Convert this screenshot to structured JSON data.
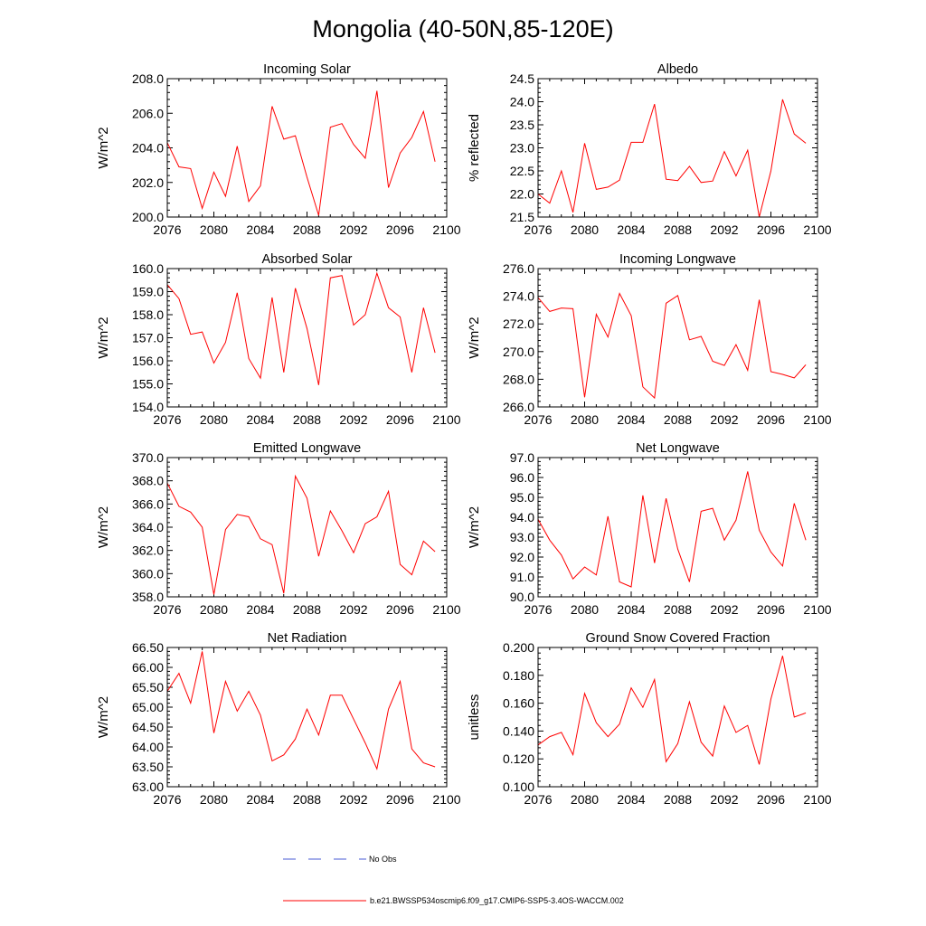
{
  "title": "Mongolia (40-50N,85-120E)",
  "colors": {
    "model": "#ff0000",
    "obs": "#4a5bd6"
  },
  "legend": {
    "obs_label": "No Obs",
    "model_label": "b.e21.BWSSP534oscmip6.f09_g17.CMIP6-SSP5-3.4OS-WACCM.002"
  },
  "chart_data": [
    {
      "type": "line",
      "title": "Incoming Solar",
      "xlabel": "",
      "ylabel": "W/m^2",
      "xlim": [
        2076,
        2100
      ],
      "ylim": [
        200.0,
        208.0
      ],
      "xticks": [
        2076,
        2080,
        2084,
        2088,
        2092,
        2096,
        2100
      ],
      "yticks": [
        200.0,
        202.0,
        204.0,
        206.0,
        208.0
      ],
      "ytick_labels": [
        "200.0",
        "202.0",
        "204.0",
        "206.0",
        "208.0"
      ],
      "x": [
        2076,
        2077,
        2078,
        2079,
        2080,
        2081,
        2082,
        2083,
        2084,
        2085,
        2086,
        2087,
        2088,
        2089,
        2090,
        2091,
        2092,
        2093,
        2094,
        2095,
        2096,
        2097,
        2098,
        2099
      ],
      "series": [
        {
          "name": "b.e21.BWSSP534oscmip6.f09_g17.CMIP6-SSP5-3.4OS-WACCM.002",
          "values": [
            204.3,
            202.9,
            202.8,
            200.5,
            202.6,
            201.2,
            204.1,
            200.9,
            201.8,
            206.4,
            204.5,
            204.7,
            202.3,
            200.1,
            205.2,
            205.4,
            204.2,
            203.4,
            207.3,
            201.7,
            203.7,
            204.6,
            206.1,
            203.2
          ]
        }
      ]
    },
    {
      "type": "line",
      "title": "Albedo",
      "xlabel": "",
      "ylabel": "% reflected",
      "xlim": [
        2076,
        2100
      ],
      "ylim": [
        21.5,
        24.5
      ],
      "xticks": [
        2076,
        2080,
        2084,
        2088,
        2092,
        2096,
        2100
      ],
      "yticks": [
        21.5,
        22.0,
        22.5,
        23.0,
        23.5,
        24.0,
        24.5
      ],
      "ytick_labels": [
        "21.5",
        "22.0",
        "22.5",
        "23.0",
        "23.5",
        "24.0",
        "24.5"
      ],
      "x": [
        2076,
        2077,
        2078,
        2079,
        2080,
        2081,
        2082,
        2083,
        2084,
        2085,
        2086,
        2087,
        2088,
        2089,
        2090,
        2091,
        2092,
        2093,
        2094,
        2095,
        2096,
        2097,
        2098,
        2099
      ],
      "series": [
        {
          "name": "b.e21.BWSSP534oscmip6.f09_g17.CMIP6-SSP5-3.4OS-WACCM.002",
          "values": [
            22.0,
            21.8,
            22.5,
            21.6,
            23.1,
            22.1,
            22.15,
            22.3,
            23.12,
            23.12,
            23.95,
            22.32,
            22.29,
            22.6,
            22.25,
            22.28,
            22.92,
            22.39,
            22.95,
            21.5,
            22.5,
            24.05,
            23.3,
            23.1
          ]
        }
      ]
    },
    {
      "type": "line",
      "title": "Absorbed Solar",
      "xlabel": "",
      "ylabel": "W/m^2",
      "xlim": [
        2076,
        2100
      ],
      "ylim": [
        154.0,
        160.0
      ],
      "xticks": [
        2076,
        2080,
        2084,
        2088,
        2092,
        2096,
        2100
      ],
      "yticks": [
        154.0,
        155.0,
        156.0,
        157.0,
        158.0,
        159.0,
        160.0
      ],
      "ytick_labels": [
        "154.0",
        "155.0",
        "156.0",
        "157.0",
        "158.0",
        "159.0",
        "160.0"
      ],
      "x": [
        2076,
        2077,
        2078,
        2079,
        2080,
        2081,
        2082,
        2083,
        2084,
        2085,
        2086,
        2087,
        2088,
        2089,
        2090,
        2091,
        2092,
        2093,
        2094,
        2095,
        2096,
        2097,
        2098,
        2099
      ],
      "series": [
        {
          "name": "b.e21.BWSSP534oscmip6.f09_g17.CMIP6-SSP5-3.4OS-WACCM.002",
          "values": [
            159.3,
            158.7,
            157.15,
            157.25,
            155.9,
            156.8,
            158.95,
            156.1,
            155.25,
            158.75,
            155.5,
            159.15,
            157.4,
            154.95,
            159.6,
            159.7,
            157.55,
            158.0,
            159.8,
            158.3,
            157.9,
            155.5,
            158.3,
            156.35
          ]
        }
      ]
    },
    {
      "type": "line",
      "title": "Incoming Longwave",
      "xlabel": "",
      "ylabel": "W/m^2",
      "xlim": [
        2076,
        2100
      ],
      "ylim": [
        266.0,
        276.0
      ],
      "xticks": [
        2076,
        2080,
        2084,
        2088,
        2092,
        2096,
        2100
      ],
      "yticks": [
        266.0,
        268.0,
        270.0,
        272.0,
        274.0,
        276.0
      ],
      "ytick_labels": [
        "266.0",
        "268.0",
        "270.0",
        "272.0",
        "274.0",
        "276.0"
      ],
      "x": [
        2076,
        2077,
        2078,
        2079,
        2080,
        2081,
        2082,
        2083,
        2084,
        2085,
        2086,
        2087,
        2088,
        2089,
        2090,
        2091,
        2092,
        2093,
        2094,
        2095,
        2096,
        2097,
        2098,
        2099
      ],
      "series": [
        {
          "name": "b.e21.BWSSP534oscmip6.f09_g17.CMIP6-SSP5-3.4OS-WACCM.002",
          "values": [
            273.9,
            272.9,
            273.15,
            273.1,
            266.7,
            272.7,
            271.05,
            274.2,
            272.6,
            267.45,
            266.65,
            273.5,
            274.05,
            270.85,
            271.1,
            269.3,
            269.0,
            270.5,
            268.65,
            273.75,
            268.55,
            268.35,
            268.1,
            269.05
          ]
        }
      ]
    },
    {
      "type": "line",
      "title": "Emitted Longwave",
      "xlabel": "",
      "ylabel": "W/m^2",
      "xlim": [
        2076,
        2100
      ],
      "ylim": [
        358.0,
        370.0
      ],
      "xticks": [
        2076,
        2080,
        2084,
        2088,
        2092,
        2096,
        2100
      ],
      "yticks": [
        358.0,
        360.0,
        362.0,
        364.0,
        366.0,
        368.0,
        370.0
      ],
      "ytick_labels": [
        "358.0",
        "360.0",
        "362.0",
        "364.0",
        "366.0",
        "368.0",
        "370.0"
      ],
      "x": [
        2076,
        2077,
        2078,
        2079,
        2080,
        2081,
        2082,
        2083,
        2084,
        2085,
        2086,
        2087,
        2088,
        2089,
        2090,
        2091,
        2092,
        2093,
        2094,
        2095,
        2096,
        2097,
        2098,
        2099
      ],
      "series": [
        {
          "name": "b.e21.BWSSP534oscmip6.f09_g17.CMIP6-SSP5-3.4OS-WACCM.002",
          "values": [
            367.8,
            365.8,
            365.3,
            364.0,
            358.2,
            363.8,
            365.1,
            364.9,
            363.0,
            362.5,
            358.3,
            368.4,
            366.5,
            361.5,
            365.4,
            363.7,
            361.8,
            364.3,
            364.9,
            367.1,
            360.8,
            359.9,
            362.8,
            361.9
          ]
        }
      ]
    },
    {
      "type": "line",
      "title": "Net Longwave",
      "xlabel": "",
      "ylabel": "W/m^2",
      "xlim": [
        2076,
        2100
      ],
      "ylim": [
        90.0,
        97.0
      ],
      "xticks": [
        2076,
        2080,
        2084,
        2088,
        2092,
        2096,
        2100
      ],
      "yticks": [
        90.0,
        91.0,
        92.0,
        93.0,
        94.0,
        95.0,
        96.0,
        97.0
      ],
      "ytick_labels": [
        "90.0",
        "91.0",
        "92.0",
        "93.0",
        "94.0",
        "95.0",
        "96.0",
        "97.0"
      ],
      "x": [
        2076,
        2077,
        2078,
        2079,
        2080,
        2081,
        2082,
        2083,
        2084,
        2085,
        2086,
        2087,
        2088,
        2089,
        2090,
        2091,
        2092,
        2093,
        2094,
        2095,
        2096,
        2097,
        2098,
        2099
      ],
      "series": [
        {
          "name": "b.e21.BWSSP534oscmip6.f09_g17.CMIP6-SSP5-3.4OS-WACCM.002",
          "values": [
            93.9,
            92.85,
            92.1,
            90.9,
            91.5,
            91.1,
            94.05,
            90.75,
            90.5,
            95.1,
            91.7,
            94.95,
            92.4,
            90.75,
            94.3,
            94.45,
            92.85,
            93.85,
            96.3,
            93.35,
            92.25,
            91.55,
            94.7,
            92.85
          ]
        }
      ]
    },
    {
      "type": "line",
      "title": "Net Radiation",
      "xlabel": "",
      "ylabel": "W/m^2",
      "xlim": [
        2076,
        2100
      ],
      "ylim": [
        63.0,
        66.5
      ],
      "xticks": [
        2076,
        2080,
        2084,
        2088,
        2092,
        2096,
        2100
      ],
      "yticks": [
        63.0,
        63.5,
        64.0,
        64.5,
        65.0,
        65.5,
        66.0,
        66.5
      ],
      "ytick_labels": [
        "63.00",
        "63.50",
        "64.00",
        "64.50",
        "65.00",
        "65.50",
        "66.00",
        "66.50"
      ],
      "x": [
        2076,
        2077,
        2078,
        2079,
        2080,
        2081,
        2082,
        2083,
        2084,
        2085,
        2086,
        2087,
        2088,
        2089,
        2090,
        2091,
        2092,
        2093,
        2094,
        2095,
        2096,
        2097,
        2098,
        2099
      ],
      "series": [
        {
          "name": "b.e21.BWSSP534oscmip6.f09_g17.CMIP6-SSP5-3.4OS-WACCM.002",
          "values": [
            65.4,
            65.85,
            65.1,
            66.4,
            64.35,
            65.65,
            64.9,
            65.4,
            64.8,
            63.65,
            63.8,
            64.2,
            64.95,
            64.3,
            65.3,
            65.3,
            64.7,
            64.1,
            63.45,
            64.95,
            65.65,
            63.95,
            63.6,
            63.5
          ]
        }
      ]
    },
    {
      "type": "line",
      "title": "Ground Snow Covered Fraction",
      "xlabel": "",
      "ylabel": "unitless",
      "xlim": [
        2076,
        2100
      ],
      "ylim": [
        0.1,
        0.2
      ],
      "xticks": [
        2076,
        2080,
        2084,
        2088,
        2092,
        2096,
        2100
      ],
      "yticks": [
        0.1,
        0.12,
        0.14,
        0.16,
        0.18,
        0.2
      ],
      "ytick_labels": [
        "0.100",
        "0.120",
        "0.140",
        "0.160",
        "0.180",
        "0.200"
      ],
      "x": [
        2076,
        2077,
        2078,
        2079,
        2080,
        2081,
        2082,
        2083,
        2084,
        2085,
        2086,
        2087,
        2088,
        2089,
        2090,
        2091,
        2092,
        2093,
        2094,
        2095,
        2096,
        2097,
        2098,
        2099
      ],
      "series": [
        {
          "name": "b.e21.BWSSP534oscmip6.f09_g17.CMIP6-SSP5-3.4OS-WACCM.002",
          "values": [
            0.13,
            0.136,
            0.139,
            0.123,
            0.167,
            0.146,
            0.136,
            0.145,
            0.171,
            0.157,
            0.177,
            0.118,
            0.131,
            0.161,
            0.132,
            0.122,
            0.158,
            0.139,
            0.144,
            0.116,
            0.163,
            0.194,
            0.15,
            0.153
          ]
        }
      ]
    }
  ]
}
